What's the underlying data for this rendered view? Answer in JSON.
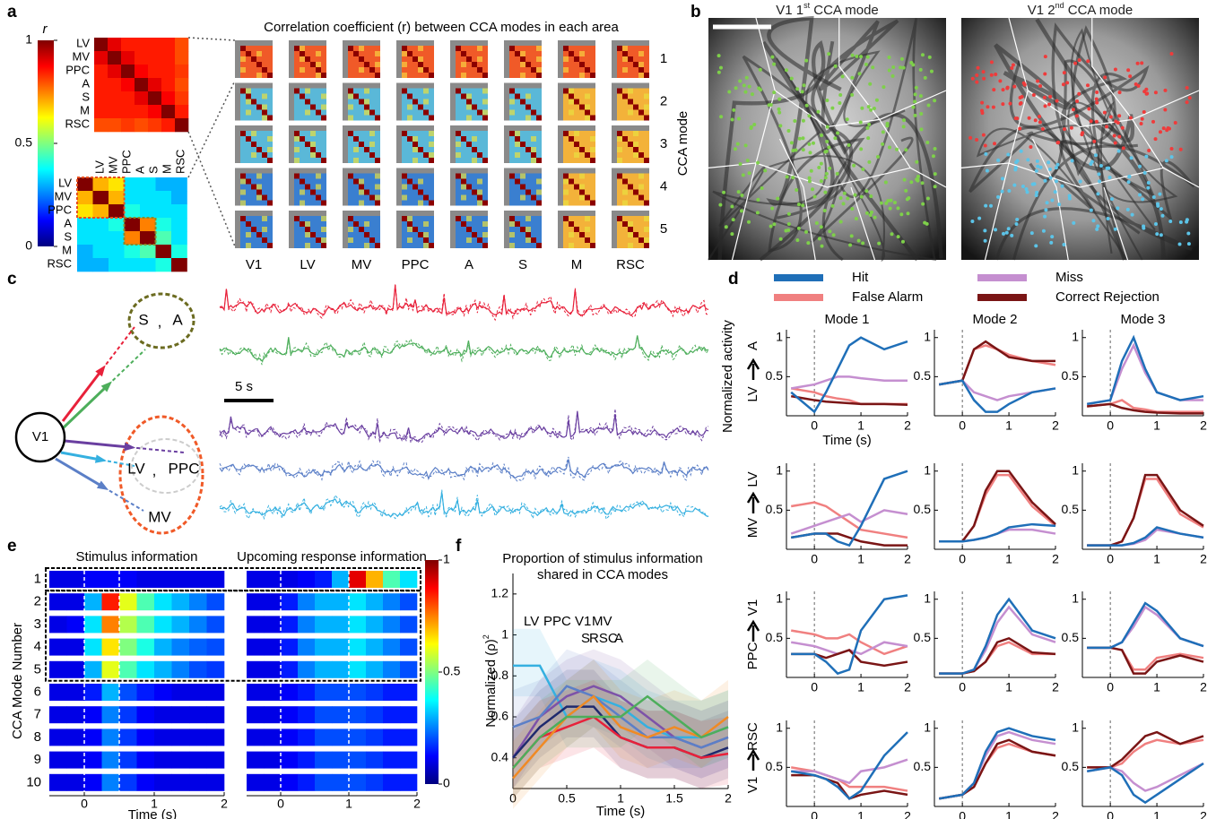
{
  "panel_a": {
    "label": "a",
    "colorbar_label": "r",
    "clim": [
      0,
      1
    ],
    "cticks": [
      0,
      0.5,
      1
    ],
    "area_labels": [
      "LV",
      "MV",
      "PPC",
      "A",
      "S",
      "M",
      "RSC"
    ],
    "bottom_label_colors": [
      "#e8501e",
      "#e8501e",
      "#e8501e",
      "#8a8a2a",
      "#8a8a2a",
      "#000000",
      "#000000"
    ],
    "matrix_top": [
      [
        1,
        0.9,
        0.85,
        0.85,
        0.85,
        0.85,
        0.8
      ],
      [
        0.9,
        1,
        0.9,
        0.85,
        0.85,
        0.85,
        0.8
      ],
      [
        0.85,
        0.9,
        1,
        0.88,
        0.85,
        0.85,
        0.82
      ],
      [
        0.85,
        0.85,
        0.88,
        1,
        0.9,
        0.85,
        0.8
      ],
      [
        0.85,
        0.85,
        0.85,
        0.9,
        1,
        0.88,
        0.82
      ],
      [
        0.85,
        0.85,
        0.85,
        0.85,
        0.88,
        1,
        0.85
      ],
      [
        0.8,
        0.8,
        0.82,
        0.8,
        0.82,
        0.85,
        1
      ]
    ],
    "matrix_bottom": [
      [
        1,
        0.7,
        0.65,
        0.35,
        0.35,
        0.3,
        0.3
      ],
      [
        0.7,
        1,
        0.7,
        0.35,
        0.35,
        0.35,
        0.3
      ],
      [
        0.65,
        0.7,
        1,
        0.4,
        0.35,
        0.35,
        0.35
      ],
      [
        0.35,
        0.35,
        0.4,
        1,
        0.75,
        0.4,
        0.35
      ],
      [
        0.35,
        0.35,
        0.35,
        0.75,
        1,
        0.45,
        0.35
      ],
      [
        0.3,
        0.35,
        0.35,
        0.4,
        0.45,
        1,
        0.4
      ],
      [
        0.3,
        0.3,
        0.35,
        0.35,
        0.35,
        0.4,
        1
      ]
    ],
    "title": "Correlation coefficient (r) between CCA modes in each area",
    "areas": [
      "V1",
      "LV",
      "MV",
      "PPC",
      "A",
      "S",
      "M",
      "RSC"
    ],
    "modes": [
      1,
      2,
      3,
      4,
      5
    ],
    "mode_axis": "CCA mode"
  },
  "panel_b": {
    "label": "b",
    "titles": [
      {
        "area": "V1 1",
        "sup": "st",
        "rest": " CCA mode"
      },
      {
        "area": "V1 2",
        "sup": "nd",
        "rest": " CCA mode"
      }
    ]
  },
  "panel_c": {
    "label": "c",
    "source": "V1",
    "targets": [
      "S",
      "A",
      "LV",
      "PPC",
      "MV"
    ],
    "separator": ",",
    "scale_bar": "5 s"
  },
  "panel_d": {
    "label": "d",
    "series": [
      {
        "name": "Hit",
        "color": "#1f6fb8"
      },
      {
        "name": "False Alarm",
        "color": "#f08080"
      },
      {
        "name": "Miss",
        "color": "#c58fd0"
      },
      {
        "name": "Correct Rejection",
        "color": "#7a1515"
      }
    ],
    "modes": [
      "Mode 1",
      "Mode 2",
      "Mode 3"
    ],
    "ylabel": "Normalized activity",
    "xlabel": "Time (s)",
    "x": [
      -0.5,
      0,
      0.25,
      0.5,
      0.75,
      1,
      1.5,
      2
    ],
    "xlim": [
      -0.6,
      2
    ],
    "xticks": [
      0,
      1,
      2
    ],
    "ylim": [
      0,
      1.1
    ],
    "yticks": [
      0.5,
      1
    ],
    "onset": 0,
    "rows": [
      {
        "source": "LV",
        "source_color": "#35b0e0",
        "target": "A",
        "target_color": "#4dae5b",
        "modes": [
          [
            [
              0.3,
              0.05,
              0.3,
              0.6,
              0.9,
              1.0,
              0.85,
              0.95
            ],
            [
              0.35,
              0.3,
              0.25,
              0.22,
              0.2,
              0.15,
              0.15,
              0.15
            ],
            [
              0.35,
              0.4,
              0.45,
              0.5,
              0.5,
              0.48,
              0.45,
              0.45
            ],
            [
              0.25,
              0.2,
              0.18,
              0.17,
              0.16,
              0.15,
              0.15,
              0.14
            ]
          ],
          [
            [
              0.4,
              0.45,
              0.2,
              0.05,
              0.05,
              0.15,
              0.3,
              0.35
            ],
            [
              0.4,
              0.45,
              0.85,
              0.9,
              0.85,
              0.78,
              0.7,
              0.65
            ],
            [
              0.4,
              0.45,
              0.3,
              0.25,
              0.2,
              0.25,
              0.3,
              0.35
            ],
            [
              0.4,
              0.45,
              0.85,
              0.95,
              0.85,
              0.75,
              0.7,
              0.7
            ]
          ],
          [
            [
              0.15,
              0.2,
              0.7,
              1.0,
              0.6,
              0.3,
              0.2,
              0.25
            ],
            [
              0.12,
              0.15,
              0.2,
              0.1,
              0.08,
              0.05,
              0.05,
              0.05
            ],
            [
              0.15,
              0.2,
              0.6,
              0.9,
              0.55,
              0.3,
              0.2,
              0.2
            ],
            [
              0.12,
              0.15,
              0.1,
              0.07,
              0.05,
              0.04,
              0.03,
              0.03
            ]
          ]
        ]
      },
      {
        "source": "MV",
        "source_color": "#5b7fc7",
        "target": "LV",
        "target_color": "#35b0e0",
        "modes": [
          [
            [
              0.15,
              0.2,
              0.2,
              0.1,
              0.05,
              0.3,
              0.9,
              1.0
            ],
            [
              0.55,
              0.6,
              0.55,
              0.45,
              0.35,
              0.25,
              0.2,
              0.15
            ],
            [
              0.2,
              0.3,
              0.35,
              0.4,
              0.45,
              0.35,
              0.5,
              0.45
            ],
            [
              0.15,
              0.2,
              0.2,
              0.2,
              0.15,
              0.1,
              0.05,
              0.05
            ]
          ],
          [
            [
              0.1,
              0.1,
              0.12,
              0.15,
              0.2,
              0.28,
              0.32,
              0.3
            ],
            [
              0.1,
              0.1,
              0.3,
              0.7,
              0.95,
              0.95,
              0.55,
              0.3
            ],
            [
              0.1,
              0.1,
              0.12,
              0.15,
              0.2,
              0.25,
              0.25,
              0.2
            ],
            [
              0.1,
              0.1,
              0.3,
              0.75,
              1.0,
              1.0,
              0.6,
              0.32
            ]
          ],
          [
            [
              0.05,
              0.05,
              0.05,
              0.08,
              0.15,
              0.28,
              0.2,
              0.15
            ],
            [
              0.05,
              0.05,
              0.1,
              0.4,
              0.9,
              0.9,
              0.45,
              0.28
            ],
            [
              0.05,
              0.05,
              0.05,
              0.07,
              0.12,
              0.25,
              0.2,
              0.15
            ],
            [
              0.05,
              0.05,
              0.1,
              0.4,
              0.95,
              0.95,
              0.5,
              0.3
            ]
          ]
        ]
      },
      {
        "source": "PPC",
        "source_color": "#a45cc0",
        "target": "V1",
        "target_color": "#1f2a6e",
        "modes": [
          [
            [
              0.3,
              0.3,
              0.2,
              0.05,
              0.1,
              0.6,
              1.0,
              1.05
            ],
            [
              0.6,
              0.55,
              0.5,
              0.5,
              0.55,
              0.45,
              0.3,
              0.4
            ],
            [
              0.45,
              0.4,
              0.35,
              0.3,
              0.35,
              0.3,
              0.45,
              0.4
            ],
            [
              0.3,
              0.3,
              0.25,
              0.3,
              0.35,
              0.2,
              0.15,
              0.2
            ]
          ],
          [
            [
              0.05,
              0.05,
              0.1,
              0.4,
              0.8,
              1.0,
              0.6,
              0.5
            ],
            [
              0.05,
              0.05,
              0.08,
              0.2,
              0.4,
              0.45,
              0.3,
              0.3
            ],
            [
              0.05,
              0.05,
              0.1,
              0.35,
              0.7,
              0.9,
              0.55,
              0.45
            ],
            [
              0.05,
              0.05,
              0.08,
              0.2,
              0.45,
              0.5,
              0.32,
              0.3
            ]
          ],
          [
            [
              0.38,
              0.38,
              0.45,
              0.7,
              0.95,
              0.85,
              0.5,
              0.4
            ],
            [
              0.38,
              0.38,
              0.35,
              0.1,
              0.1,
              0.25,
              0.3,
              0.25
            ],
            [
              0.38,
              0.38,
              0.45,
              0.65,
              0.9,
              0.8,
              0.5,
              0.4
            ],
            [
              0.38,
              0.38,
              0.35,
              0.05,
              0.05,
              0.2,
              0.28,
              0.2
            ]
          ]
        ]
      },
      {
        "source": "V1",
        "source_color": "#1f2a6e",
        "target": "RSC",
        "target_color": "#f08a24",
        "modes": [
          [
            [
              0.45,
              0.4,
              0.35,
              0.25,
              0.1,
              0.2,
              0.65,
              0.95
            ],
            [
              0.5,
              0.45,
              0.4,
              0.35,
              0.25,
              0.25,
              0.25,
              0.2
            ],
            [
              0.45,
              0.45,
              0.4,
              0.35,
              0.3,
              0.45,
              0.5,
              0.6
            ],
            [
              0.4,
              0.4,
              0.35,
              0.3,
              0.1,
              0.15,
              0.2,
              0.15
            ]
          ],
          [
            [
              0.1,
              0.15,
              0.3,
              0.7,
              0.95,
              1.0,
              0.9,
              0.85
            ],
            [
              0.1,
              0.15,
              0.25,
              0.55,
              0.75,
              0.8,
              0.7,
              0.65
            ],
            [
              0.1,
              0.15,
              0.3,
              0.65,
              0.9,
              0.95,
              0.85,
              0.8
            ],
            [
              0.1,
              0.15,
              0.25,
              0.55,
              0.8,
              0.85,
              0.7,
              0.65
            ]
          ],
          [
            [
              0.45,
              0.5,
              0.4,
              0.15,
              0.05,
              0.15,
              0.35,
              0.55
            ],
            [
              0.5,
              0.5,
              0.55,
              0.7,
              0.8,
              0.85,
              0.8,
              0.85
            ],
            [
              0.45,
              0.5,
              0.45,
              0.3,
              0.2,
              0.25,
              0.4,
              0.55
            ],
            [
              0.5,
              0.5,
              0.6,
              0.75,
              0.9,
              0.95,
              0.8,
              0.9
            ]
          ]
        ]
      }
    ]
  },
  "panel_e": {
    "label": "e",
    "titles": [
      "Stimulus information",
      "Upcoming response information"
    ],
    "ylabel": "CCA Mode Number",
    "xlabel": "Time (s)",
    "row_labels": [
      1,
      2,
      3,
      4,
      5,
      6,
      7,
      8,
      9,
      10
    ],
    "xlim": [
      -0.5,
      2
    ],
    "xticks": [
      0,
      1,
      2
    ],
    "clim": [
      0,
      1
    ],
    "cticks": [
      0,
      0.5,
      1
    ],
    "bins": [
      -0.5,
      -0.25,
      0,
      0.25,
      0.5,
      0.75,
      1,
      1.25,
      1.5,
      1.75,
      2
    ],
    "event_lines": {
      "stimulus": [
        0,
        0.5
      ],
      "response": [
        0,
        1
      ]
    },
    "stimulus": [
      [
        0.1,
        0.1,
        0.12,
        0.12,
        0.12,
        0.1,
        0.1,
        0.1,
        0.1,
        0.1
      ],
      [
        0.1,
        0.1,
        0.3,
        0.85,
        0.6,
        0.45,
        0.35,
        0.3,
        0.25,
        0.2
      ],
      [
        0.1,
        0.12,
        0.35,
        0.75,
        0.55,
        0.45,
        0.35,
        0.3,
        0.25,
        0.2
      ],
      [
        0.1,
        0.1,
        0.35,
        0.65,
        0.5,
        0.4,
        0.3,
        0.25,
        0.22,
        0.2
      ],
      [
        0.1,
        0.1,
        0.3,
        0.6,
        0.45,
        0.35,
        0.3,
        0.25,
        0.2,
        0.18
      ],
      [
        0.1,
        0.1,
        0.15,
        0.3,
        0.2,
        0.15,
        0.12,
        0.1,
        0.1,
        0.1
      ],
      [
        0.1,
        0.1,
        0.12,
        0.25,
        0.18,
        0.12,
        0.1,
        0.1,
        0.1,
        0.1
      ],
      [
        0.1,
        0.1,
        0.12,
        0.25,
        0.18,
        0.12,
        0.1,
        0.1,
        0.1,
        0.1
      ],
      [
        0.1,
        0.1,
        0.12,
        0.25,
        0.18,
        0.12,
        0.1,
        0.1,
        0.1,
        0.1
      ],
      [
        0.1,
        0.1,
        0.12,
        0.25,
        0.18,
        0.12,
        0.1,
        0.1,
        0.1,
        0.1
      ]
    ],
    "response": [
      [
        0.1,
        0.1,
        0.1,
        0.12,
        0.15,
        0.3,
        0.9,
        0.7,
        0.45,
        0.35
      ],
      [
        0.1,
        0.1,
        0.15,
        0.25,
        0.3,
        0.3,
        0.35,
        0.3,
        0.25,
        0.2
      ],
      [
        0.1,
        0.1,
        0.15,
        0.25,
        0.3,
        0.3,
        0.35,
        0.3,
        0.25,
        0.2
      ],
      [
        0.1,
        0.1,
        0.15,
        0.25,
        0.3,
        0.3,
        0.35,
        0.3,
        0.25,
        0.2
      ],
      [
        0.1,
        0.1,
        0.15,
        0.25,
        0.3,
        0.3,
        0.35,
        0.3,
        0.25,
        0.2
      ],
      [
        0.1,
        0.1,
        0.12,
        0.15,
        0.2,
        0.2,
        0.2,
        0.18,
        0.15,
        0.15
      ],
      [
        0.1,
        0.1,
        0.12,
        0.15,
        0.2,
        0.2,
        0.2,
        0.18,
        0.15,
        0.15
      ],
      [
        0.1,
        0.1,
        0.12,
        0.15,
        0.2,
        0.2,
        0.2,
        0.18,
        0.15,
        0.15
      ],
      [
        0.1,
        0.1,
        0.12,
        0.15,
        0.2,
        0.2,
        0.2,
        0.18,
        0.15,
        0.15
      ],
      [
        0.1,
        0.1,
        0.12,
        0.15,
        0.2,
        0.2,
        0.2,
        0.18,
        0.15,
        0.15
      ]
    ]
  },
  "panel_f": {
    "label": "f",
    "title": [
      "Proportion of stimulus information",
      "shared in CCA modes"
    ],
    "ylabel": "Normalized (ρ)",
    "ylabel_sup": "2",
    "xlabel": "Time (s)",
    "x": [
      0,
      0.25,
      0.5,
      0.75,
      1,
      1.25,
      1.5,
      1.75,
      2
    ],
    "xlim": [
      0,
      2
    ],
    "xticks": [
      0,
      0.5,
      1,
      1.5,
      2
    ],
    "ylim": [
      0.25,
      1.3
    ],
    "yticks": [
      0.4,
      0.6,
      0.8,
      1,
      1.2
    ],
    "series": [
      {
        "name": "LV",
        "color": "#35b0e0",
        "values": [
          0.85,
          0.85,
          0.6,
          0.7,
          0.65,
          0.55,
          0.5,
          0.5,
          0.55
        ]
      },
      {
        "name": "PPC",
        "color": "#7d52a8",
        "values": [
          0.4,
          0.6,
          0.7,
          0.75,
          0.7,
          0.6,
          0.5,
          0.45,
          0.5
        ]
      },
      {
        "name": "V1",
        "color": "#1f2a6e",
        "values": [
          0.4,
          0.55,
          0.65,
          0.65,
          0.5,
          0.45,
          0.45,
          0.4,
          0.45
        ]
      },
      {
        "name": "MV",
        "color": "#5b7fc7",
        "values": [
          0.55,
          0.6,
          0.75,
          0.7,
          0.6,
          0.5,
          0.5,
          0.45,
          0.5
        ]
      },
      {
        "name": "S",
        "color": "#e8213a",
        "values": [
          0.35,
          0.5,
          0.55,
          0.6,
          0.5,
          0.45,
          0.45,
          0.4,
          0.42
        ]
      },
      {
        "name": "RSC",
        "color": "#f08a24",
        "values": [
          0.3,
          0.45,
          0.6,
          0.7,
          0.55,
          0.5,
          0.55,
          0.5,
          0.6
        ]
      },
      {
        "name": "A",
        "color": "#4dae5b",
        "values": [
          0.35,
          0.5,
          0.6,
          0.6,
          0.6,
          0.7,
          0.6,
          0.5,
          0.55
        ]
      }
    ]
  }
}
